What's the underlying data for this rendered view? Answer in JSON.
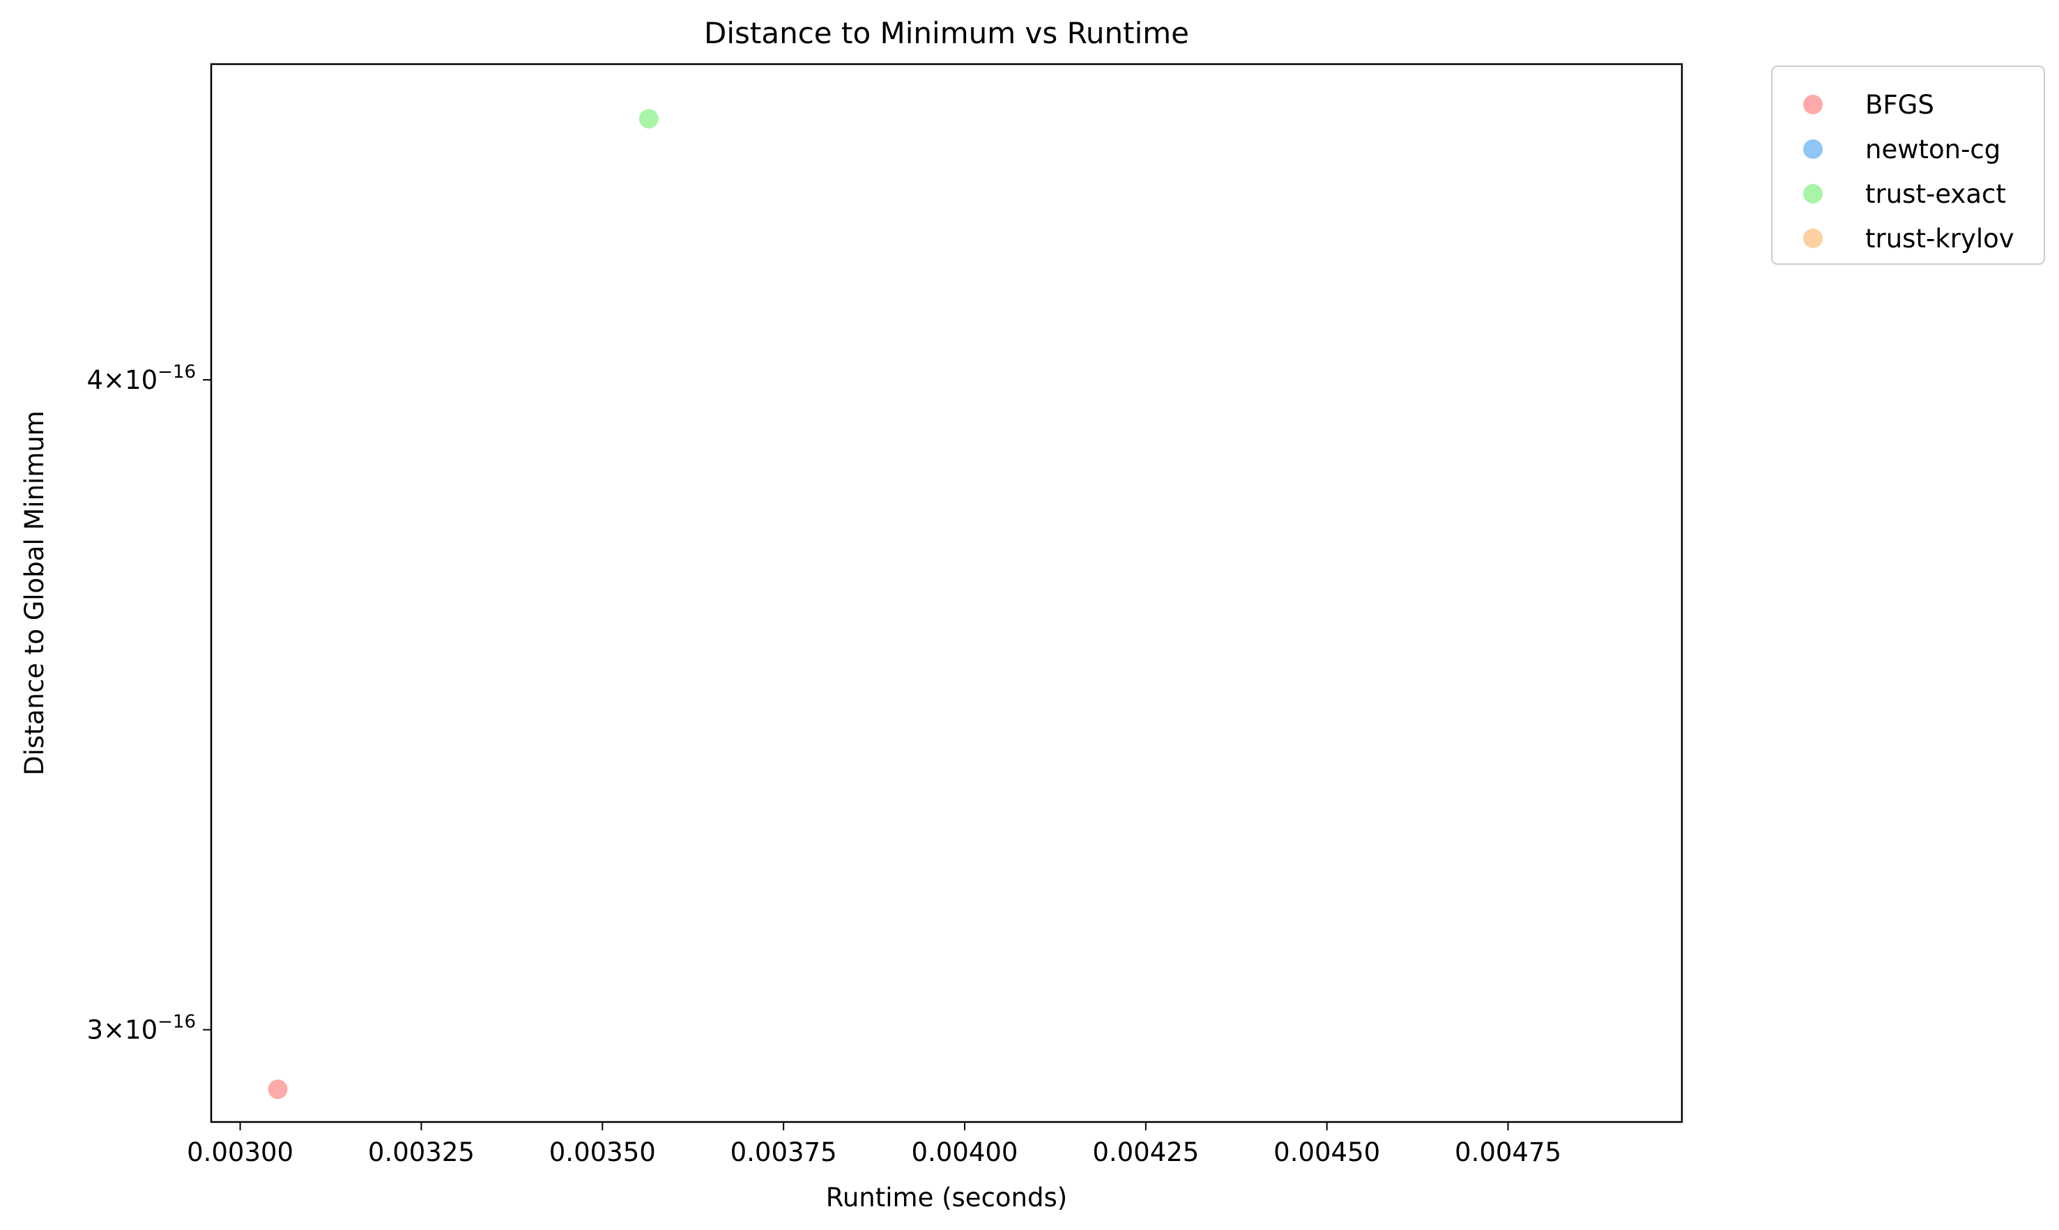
{
  "chart_data": {
    "type": "scatter",
    "title": "Distance to Minimum vs Runtime",
    "xlabel": "Runtime (seconds)",
    "ylabel": "Distance to Global Minimum",
    "y_scale": "log",
    "xlim": [
      0.00296,
      0.00499
    ],
    "ylim": [
      2.88e-16,
      4.6e-16
    ],
    "grid": false,
    "legend_placement": "outside upper right",
    "x_ticks": [
      {
        "value": 0.003,
        "label": "0.00300"
      },
      {
        "value": 0.00325,
        "label": "0.00325"
      },
      {
        "value": 0.0035,
        "label": "0.00350"
      },
      {
        "value": 0.00375,
        "label": "0.00375"
      },
      {
        "value": 0.004,
        "label": "0.00400"
      },
      {
        "value": 0.00425,
        "label": "0.00425"
      },
      {
        "value": 0.0045,
        "label": "0.00450"
      },
      {
        "value": 0.00475,
        "label": "0.00475"
      }
    ],
    "y_ticks": [
      {
        "value": 3e-16,
        "mantissa": "3",
        "exponent": "−16"
      },
      {
        "value": 4e-16,
        "mantissa": "4",
        "exponent": "−16"
      }
    ],
    "series": [
      {
        "name": "BFGS",
        "color": "#ffaaaa",
        "points": [
          {
            "x": 0.003052,
            "y": 2.922e-16
          }
        ]
      },
      {
        "name": "newton-cg",
        "color": "#8fc6f6",
        "points": []
      },
      {
        "name": "trust-exact",
        "color": "#a8f5a8",
        "points": [
          {
            "x": 0.003564,
            "y": 4.49e-16
          }
        ]
      },
      {
        "name": "trust-krylov",
        "color": "#fdd0a2",
        "points": []
      }
    ]
  }
}
